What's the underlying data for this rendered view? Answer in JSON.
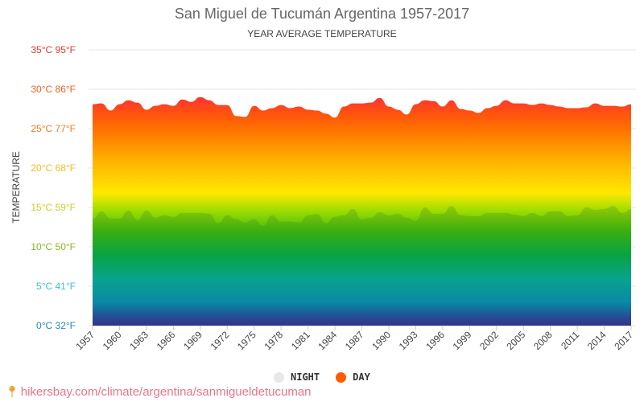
{
  "chart_data": {
    "type": "area",
    "title": "San Miguel de Tucumán Argentina 1957-2017",
    "subtitle": "YEAR AVERAGE TEMPERATURE",
    "ylabel": "TEMPERATURE",
    "xlabel": "",
    "ylim": [
      0,
      35
    ],
    "xlim": [
      1957,
      2017
    ],
    "y_ticks": [
      "0°C 32°F",
      "5°C 41°F",
      "10°C 50°F",
      "15°C 59°F",
      "20°C 68°F",
      "25°C 77°F",
      "30°C 86°F",
      "35°C 95°F"
    ],
    "y_tick_colors": [
      "#2a86c0",
      "#3cc0c8",
      "#86b820",
      "#c8d020",
      "#f0c020",
      "#f08020",
      "#f06020",
      "#e03a30"
    ],
    "x_ticks": [
      "1957",
      "1960",
      "1963",
      "1966",
      "1969",
      "1972",
      "1975",
      "1978",
      "1981",
      "1984",
      "1987",
      "1990",
      "1993",
      "1996",
      "1999",
      "2002",
      "2005",
      "2008",
      "2011",
      "2014",
      "2017"
    ],
    "grid": true,
    "legend_position": "bottom",
    "x": [
      1957,
      1958,
      1959,
      1960,
      1961,
      1962,
      1963,
      1964,
      1965,
      1966,
      1967,
      1968,
      1969,
      1970,
      1971,
      1972,
      1973,
      1974,
      1975,
      1976,
      1977,
      1978,
      1979,
      1980,
      1981,
      1982,
      1983,
      1984,
      1985,
      1986,
      1987,
      1988,
      1989,
      1990,
      1991,
      1992,
      1993,
      1994,
      1995,
      1996,
      1997,
      1998,
      1999,
      2000,
      2001,
      2002,
      2003,
      2004,
      2005,
      2006,
      2007,
      2008,
      2009,
      2010,
      2011,
      2012,
      2013,
      2014,
      2015,
      2016,
      2017
    ],
    "series": [
      {
        "name": "DAY",
        "color": "#ff5a00",
        "values": [
          28.1,
          28.2,
          27.3,
          28.1,
          28.6,
          28.3,
          27.4,
          27.9,
          28.1,
          27.9,
          28.7,
          28.4,
          29.0,
          28.6,
          28.0,
          28.0,
          26.6,
          26.5,
          27.9,
          27.3,
          27.6,
          28.0,
          27.6,
          27.8,
          27.4,
          27.3,
          26.9,
          26.4,
          27.8,
          28.2,
          28.2,
          28.3,
          28.9,
          27.8,
          27.4,
          26.8,
          28.1,
          28.6,
          28.5,
          27.8,
          28.6,
          27.5,
          27.3,
          27.0,
          27.6,
          27.9,
          28.6,
          28.2,
          28.2,
          28.0,
          28.2,
          28.0,
          27.8,
          27.6,
          27.6,
          27.7,
          28.2,
          27.9,
          27.9,
          27.8,
          28.1
        ]
      },
      {
        "name": "NIGHT",
        "color": "#e8e8e8",
        "values": [
          13.5,
          14.5,
          13.6,
          13.6,
          14.6,
          13.4,
          14.6,
          13.7,
          14.0,
          13.8,
          14.3,
          14.3,
          14.3,
          14.2,
          13.0,
          14.0,
          13.5,
          13.1,
          13.5,
          12.7,
          14.0,
          13.2,
          13.2,
          13.1,
          14.0,
          14.2,
          13.0,
          13.8,
          14.0,
          14.8,
          13.5,
          13.7,
          14.4,
          14.0,
          14.2,
          13.7,
          13.3,
          15.0,
          14.2,
          14.2,
          15.2,
          14.0,
          13.9,
          13.9,
          14.3,
          14.3,
          14.3,
          14.1,
          13.9,
          14.3,
          13.9,
          14.5,
          14.5,
          13.9,
          14.0,
          15.0,
          14.7,
          14.8,
          15.2,
          14.3,
          14.8
        ]
      }
    ]
  },
  "legend": {
    "night": "NIGHT",
    "day": "DAY"
  },
  "source": "hikersbay.com/climate/argentina/sanmigueldetucuman"
}
